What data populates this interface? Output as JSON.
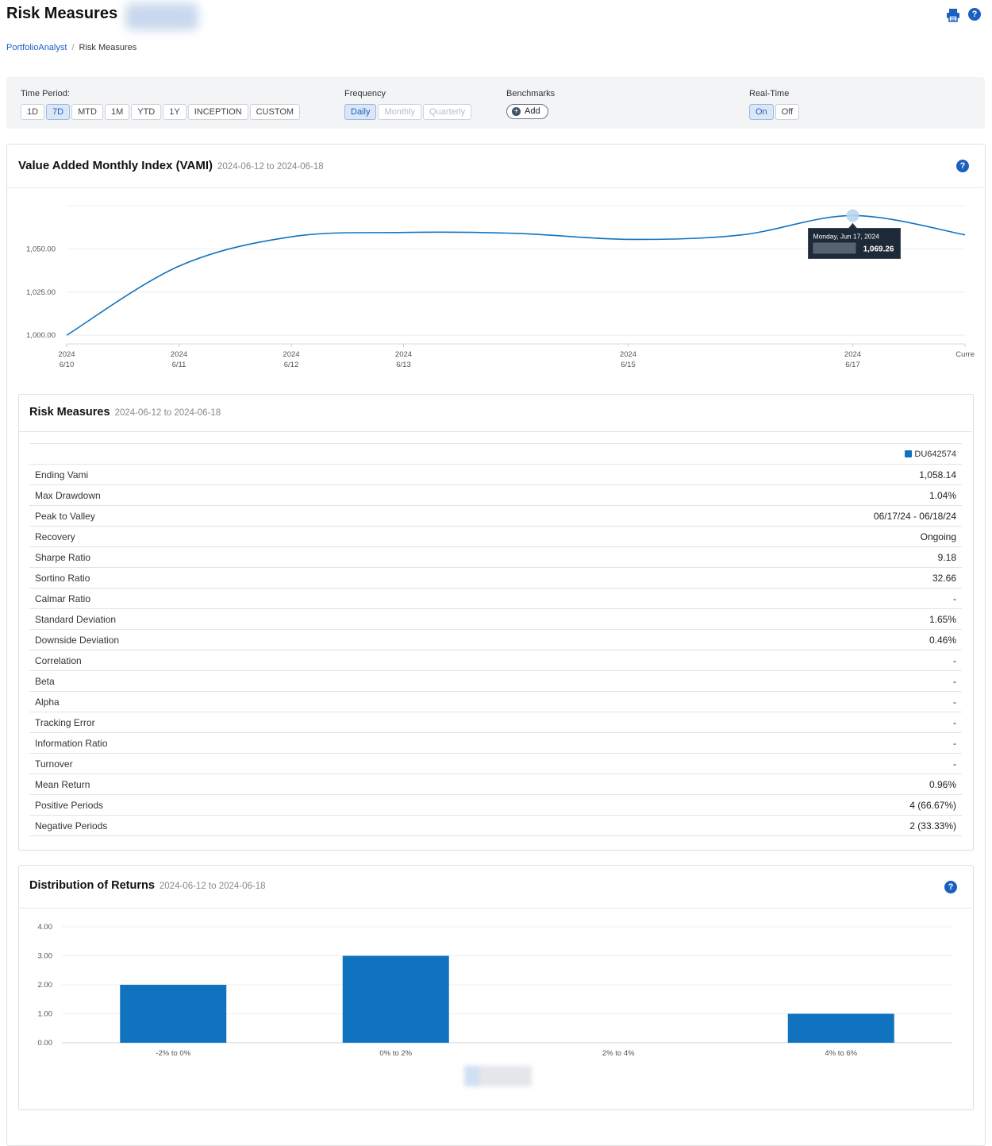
{
  "header": {
    "title": "Risk Measures",
    "breadcrumb": {
      "root": "PortfolioAnalyst",
      "separator": "/",
      "current": "Risk Measures"
    }
  },
  "filters": {
    "time_period_label": "Time Period:",
    "time_periods": [
      "1D",
      "7D",
      "MTD",
      "1M",
      "YTD",
      "1Y",
      "INCEPTION",
      "CUSTOM"
    ],
    "time_period_selected": "7D",
    "frequency_label": "Frequency",
    "frequencies": [
      "Daily",
      "Monthly",
      "Quarterly"
    ],
    "frequency_selected": "Daily",
    "benchmarks_label": "Benchmarks",
    "add_label": "Add",
    "realtime_label": "Real-Time",
    "realtime_options": [
      "On",
      "Off"
    ],
    "realtime_selected": "On"
  },
  "colors": {
    "accent": "#1b5fc1",
    "series": "#1073c0",
    "tooltip_bg": "#1f2a38"
  },
  "vami": {
    "title": "Value Added Monthly Index (VAMI)",
    "range": "2024-06-12 to 2024-06-18",
    "tooltip": {
      "date": "Monday, Jun 17, 2024",
      "value": "1,069.26"
    }
  },
  "risk": {
    "title": "Risk Measures",
    "range": "2024-06-12 to 2024-06-18",
    "account": "DU642574",
    "rows": [
      {
        "label": "Ending Vami",
        "value": "1,058.14"
      },
      {
        "label": "Max Drawdown",
        "value": "1.04%"
      },
      {
        "label": "Peak to Valley",
        "value": "06/17/24 - 06/18/24"
      },
      {
        "label": "Recovery",
        "value": "Ongoing"
      },
      {
        "label": "Sharpe Ratio",
        "value": "9.18"
      },
      {
        "label": "Sortino Ratio",
        "value": "32.66"
      },
      {
        "label": "Calmar Ratio",
        "value": "-"
      },
      {
        "label": "Standard Deviation",
        "value": "1.65%"
      },
      {
        "label": "Downside Deviation",
        "value": "0.46%"
      },
      {
        "label": "Correlation",
        "value": "-"
      },
      {
        "label": "Beta",
        "value": "-"
      },
      {
        "label": "Alpha",
        "value": "-"
      },
      {
        "label": "Tracking Error",
        "value": "-"
      },
      {
        "label": "Information Ratio",
        "value": "-"
      },
      {
        "label": "Turnover",
        "value": "-"
      },
      {
        "label": "Mean Return",
        "value": "0.96%"
      },
      {
        "label": "Positive Periods",
        "value": "4 (66.67%)"
      },
      {
        "label": "Negative Periods",
        "value": "2 (33.33%)"
      }
    ]
  },
  "distribution": {
    "title": "Distribution of Returns",
    "range": "2024-06-12 to 2024-06-18"
  },
  "chart_data": [
    {
      "type": "line",
      "x": [
        "2024-06-10",
        "2024-06-11",
        "2024-06-12",
        "2024-06-13",
        "2024-06-14",
        "2024-06-15",
        "2024-06-16",
        "2024-06-17",
        "2024-06-18"
      ],
      "series": [
        {
          "values": [
            1000.0,
            1040.0,
            1057.0,
            1059.5,
            1059.0,
            1055.5,
            1058.0,
            1069.26,
            1058.14
          ]
        }
      ],
      "x_tick_labels": [
        {
          "top": "2024",
          "bottom": "6/10",
          "x": "2024-06-10"
        },
        {
          "top": "2024",
          "bottom": "6/11",
          "x": "2024-06-11"
        },
        {
          "top": "2024",
          "bottom": "6/12",
          "x": "2024-06-12"
        },
        {
          "top": "2024",
          "bottom": "6/13",
          "x": "2024-06-13"
        },
        {
          "top": "2024",
          "bottom": "6/15",
          "x": "2024-06-15"
        },
        {
          "top": "2024",
          "bottom": "6/17",
          "x": "2024-06-17"
        },
        {
          "top": "",
          "bottom": "Curre",
          "x": "2024-06-18"
        }
      ],
      "y_ticks": [
        "1,000.00",
        "1,025.00",
        "1,050.00"
      ],
      "ylim": [
        995,
        1075
      ],
      "grid": true
    },
    {
      "type": "bar",
      "categories": [
        "-2% to 0%",
        "0% to 2%",
        "2% to 4%",
        "4% to 6%"
      ],
      "series": [
        {
          "values": [
            2,
            3,
            0,
            1
          ]
        }
      ],
      "y_ticks": [
        "0.00",
        "1.00",
        "2.00",
        "3.00",
        "4.00"
      ],
      "ylim": [
        0,
        4
      ],
      "grid": true
    }
  ]
}
